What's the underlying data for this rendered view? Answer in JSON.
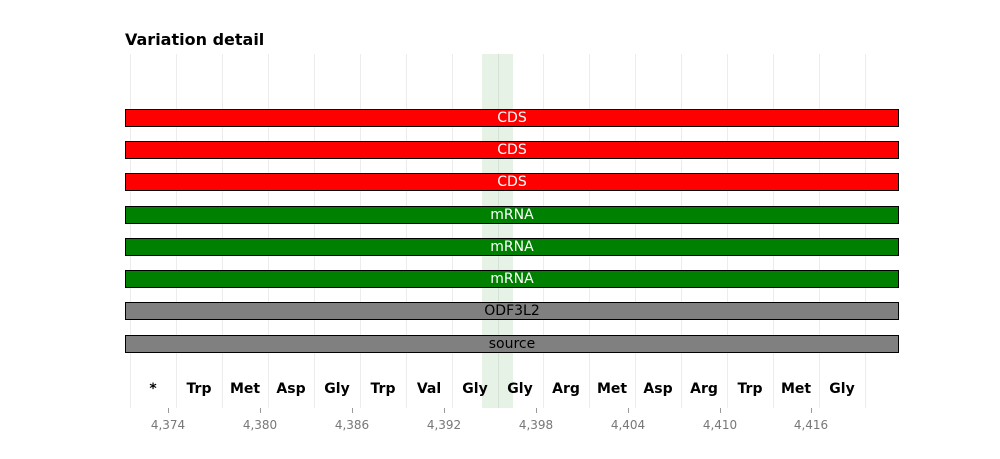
{
  "title": "Variation detail",
  "colors": {
    "CDS": "#ff0000",
    "mRNA": "#008000",
    "feature": "#808080",
    "highlight": "#008000"
  },
  "view": {
    "start": 4371.5,
    "end": 4420.5
  },
  "highlight": {
    "start": 4394.5,
    "end": 4396.5
  },
  "tracks": [
    {
      "label": "CDS",
      "kind": "CDS"
    },
    {
      "label": "CDS",
      "kind": "CDS"
    },
    {
      "label": "CDS",
      "kind": "CDS"
    },
    {
      "label": "mRNA",
      "kind": "mRNA"
    },
    {
      "label": "mRNA",
      "kind": "mRNA"
    },
    {
      "label": "mRNA",
      "kind": "mRNA"
    },
    {
      "label": "ODF3L2",
      "kind": "feature"
    },
    {
      "label": "source",
      "kind": "feature"
    }
  ],
  "amino_acids": [
    "*",
    "Trp",
    "Met",
    "Asp",
    "Gly",
    "Trp",
    "Val",
    "Gly",
    "Gly",
    "Arg",
    "Met",
    "Asp",
    "Arg",
    "Trp",
    "Met",
    "Gly"
  ],
  "codon_start": 4371.5,
  "axis_ticks": [
    4374,
    4380,
    4386,
    4392,
    4398,
    4404,
    4410,
    4416
  ],
  "axis_tick_labels": [
    "4,374",
    "4,380",
    "4,386",
    "4,392",
    "4,398",
    "4,404",
    "4,410",
    "4,416"
  ]
}
